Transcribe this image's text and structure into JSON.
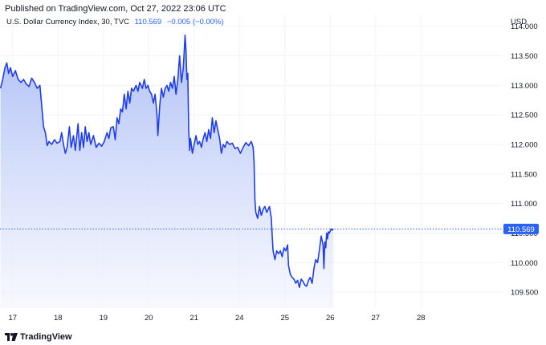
{
  "banner": "Published on TradingView.com, Oct 27, 2022 23:06 UTC",
  "legend": {
    "symbol": "U.S. Dollar Currency Index, 30, TVC",
    "last": "110.569",
    "change": "−0.005 (−0.00%)"
  },
  "currency": "USD",
  "footer": {
    "brand": "TradingView"
  },
  "colors": {
    "line": "#1f3ee8",
    "fill_top": "#a9bbf5",
    "fill_bottom": "#f4f6fe",
    "grid": "#f0f3fa",
    "price_tag": "#2962ff"
  },
  "chart_data": {
    "type": "area",
    "title": "U.S. Dollar Currency Index, 30, TVC",
    "ylabel": "USD",
    "xlabel": "",
    "x_ticks": [
      {
        "label": "17",
        "x": 0
      },
      {
        "label": "18",
        "x": 1
      },
      {
        "label": "19",
        "x": 2
      },
      {
        "label": "20",
        "x": 3
      },
      {
        "label": "21",
        "x": 4
      },
      {
        "label": "24",
        "x": 5
      },
      {
        "label": "25",
        "x": 6
      },
      {
        "label": "26",
        "x": 7
      },
      {
        "label": "27",
        "x": 8
      },
      {
        "label": "28",
        "x": 9
      }
    ],
    "y_ticks": [
      "109.500",
      "110.000",
      "110.500",
      "111.000",
      "111.500",
      "112.000",
      "112.500",
      "113.000",
      "113.500",
      "114.000"
    ],
    "y_tick_values": [
      109.5,
      110.0,
      110.5,
      111.0,
      111.5,
      112.0,
      112.5,
      113.0,
      113.5,
      114.0
    ],
    "xlim": [
      -0.28,
      10.8
    ],
    "ylim": [
      109.23,
      114.2
    ],
    "last_price": 110.569,
    "last_price_label": "110.569",
    "grid": true,
    "series": [
      {
        "values": [
          [
            -0.27,
            112.95
          ],
          [
            -0.22,
            113.1
          ],
          [
            -0.17,
            113.3
          ],
          [
            -0.13,
            113.38
          ],
          [
            -0.09,
            113.2
          ],
          [
            -0.05,
            113.3
          ],
          [
            0.0,
            113.15
          ],
          [
            0.06,
            113.25
          ],
          [
            0.12,
            113.1
          ],
          [
            0.18,
            113.05
          ],
          [
            0.24,
            113.1
          ],
          [
            0.3,
            113.02
          ],
          [
            0.36,
            112.98
          ],
          [
            0.42,
            113.12
          ],
          [
            0.48,
            113.05
          ],
          [
            0.54,
            112.95
          ],
          [
            0.6,
            113.0
          ],
          [
            0.64,
            112.65
          ],
          [
            0.68,
            112.3
          ],
          [
            0.72,
            112.2
          ],
          [
            0.76,
            111.98
          ],
          [
            0.8,
            112.05
          ],
          [
            0.86,
            112.0
          ],
          [
            0.92,
            112.08
          ],
          [
            0.98,
            112.02
          ],
          [
            1.04,
            112.05
          ],
          [
            1.08,
            112.2
          ],
          [
            1.12,
            112.0
          ],
          [
            1.16,
            111.85
          ],
          [
            1.2,
            111.95
          ],
          [
            1.25,
            112.3
          ],
          [
            1.29,
            111.95
          ],
          [
            1.34,
            112.15
          ],
          [
            1.38,
            111.9
          ],
          [
            1.44,
            112.35
          ],
          [
            1.48,
            111.9
          ],
          [
            1.52,
            112.2
          ],
          [
            1.56,
            111.95
          ],
          [
            1.6,
            112.3
          ],
          [
            1.64,
            112.05
          ],
          [
            1.68,
            112.2
          ],
          [
            1.72,
            112.0
          ],
          [
            1.78,
            112.15
          ],
          [
            1.84,
            111.95
          ],
          [
            1.9,
            112.02
          ],
          [
            1.96,
            111.97
          ],
          [
            2.02,
            112.05
          ],
          [
            2.08,
            112.2
          ],
          [
            2.12,
            112.1
          ],
          [
            2.16,
            112.28
          ],
          [
            2.22,
            112.3
          ],
          [
            2.26,
            112.08
          ],
          [
            2.3,
            112.45
          ],
          [
            2.34,
            112.35
          ],
          [
            2.38,
            112.6
          ],
          [
            2.42,
            112.55
          ],
          [
            2.46,
            112.85
          ],
          [
            2.5,
            112.6
          ],
          [
            2.54,
            112.9
          ],
          [
            2.58,
            112.7
          ],
          [
            2.62,
            112.95
          ],
          [
            2.66,
            112.9
          ],
          [
            2.72,
            113.0
          ],
          [
            2.76,
            112.9
          ],
          [
            2.8,
            113.05
          ],
          [
            2.86,
            112.95
          ],
          [
            2.9,
            113.1
          ],
          [
            2.94,
            112.95
          ],
          [
            2.98,
            113.0
          ],
          [
            3.02,
            112.9
          ],
          [
            3.06,
            112.85
          ],
          [
            3.1,
            112.7
          ],
          [
            3.14,
            112.85
          ],
          [
            3.18,
            112.5
          ],
          [
            3.2,
            112.15
          ],
          [
            3.24,
            112.65
          ],
          [
            3.28,
            112.95
          ],
          [
            3.32,
            112.8
          ],
          [
            3.36,
            112.95
          ],
          [
            3.4,
            113.0
          ],
          [
            3.44,
            112.9
          ],
          [
            3.48,
            113.05
          ],
          [
            3.52,
            112.95
          ],
          [
            3.56,
            113.15
          ],
          [
            3.6,
            112.85
          ],
          [
            3.64,
            113.1
          ],
          [
            3.68,
            113.5
          ],
          [
            3.72,
            113.05
          ],
          [
            3.76,
            113.3
          ],
          [
            3.8,
            113.85
          ],
          [
            3.82,
            113.6
          ],
          [
            3.84,
            113.1
          ],
          [
            3.86,
            113.2
          ],
          [
            3.88,
            112.25
          ],
          [
            3.9,
            111.9
          ],
          [
            3.92,
            112.1
          ],
          [
            3.96,
            111.85
          ],
          [
            4.0,
            112.0
          ],
          [
            4.04,
            112.15
          ],
          [
            4.08,
            112.0
          ],
          [
            4.12,
            112.05
          ],
          [
            4.16,
            111.95
          ],
          [
            4.2,
            112.1
          ],
          [
            4.24,
            112.2
          ],
          [
            4.28,
            112.05
          ],
          [
            4.32,
            112.25
          ],
          [
            4.36,
            112.1
          ],
          [
            4.4,
            112.45
          ],
          [
            4.44,
            112.2
          ],
          [
            4.48,
            112.4
          ],
          [
            4.52,
            112.25
          ],
          [
            4.56,
            112.1
          ],
          [
            4.6,
            111.85
          ],
          [
            4.64,
            112.0
          ],
          [
            4.68,
            111.95
          ],
          [
            4.72,
            112.05
          ],
          [
            4.78,
            112.0
          ],
          [
            4.84,
            112.02
          ],
          [
            4.9,
            111.93
          ],
          [
            4.96,
            111.95
          ],
          [
            5.02,
            111.85
          ],
          [
            5.08,
            111.95
          ],
          [
            5.14,
            112.03
          ],
          [
            5.2,
            111.98
          ],
          [
            5.26,
            112.05
          ],
          [
            5.3,
            111.95
          ],
          [
            5.32,
            111.7
          ],
          [
            5.34,
            111.05
          ],
          [
            5.36,
            110.85
          ],
          [
            5.4,
            110.75
          ],
          [
            5.44,
            110.95
          ],
          [
            5.48,
            110.8
          ],
          [
            5.52,
            110.9
          ],
          [
            5.56,
            110.95
          ],
          [
            5.6,
            110.85
          ],
          [
            5.66,
            110.95
          ],
          [
            5.7,
            110.75
          ],
          [
            5.72,
            110.45
          ],
          [
            5.74,
            110.2
          ],
          [
            5.78,
            110.05
          ],
          [
            5.82,
            110.2
          ],
          [
            5.86,
            110.15
          ],
          [
            5.9,
            110.2
          ],
          [
            5.94,
            110.1
          ],
          [
            5.98,
            110.25
          ],
          [
            6.02,
            110.2
          ],
          [
            6.06,
            110.3
          ],
          [
            6.08,
            109.95
          ],
          [
            6.12,
            109.8
          ],
          [
            6.16,
            109.75
          ],
          [
            6.2,
            109.72
          ],
          [
            6.24,
            109.65
          ],
          [
            6.28,
            109.7
          ],
          [
            6.32,
            109.58
          ],
          [
            6.36,
            109.72
          ],
          [
            6.4,
            109.68
          ],
          [
            6.44,
            109.62
          ],
          [
            6.48,
            109.6
          ],
          [
            6.52,
            109.7
          ],
          [
            6.56,
            109.75
          ],
          [
            6.6,
            109.65
          ],
          [
            6.64,
            109.9
          ],
          [
            6.68,
            110.05
          ],
          [
            6.72,
            110.0
          ],
          [
            6.76,
            110.2
          ],
          [
            6.8,
            110.45
          ],
          [
            6.84,
            110.3
          ],
          [
            6.86,
            109.9
          ],
          [
            6.88,
            110.35
          ],
          [
            6.9,
            110.25
          ],
          [
            6.92,
            110.5
          ],
          [
            6.94,
            110.4
          ],
          [
            6.96,
            110.52
          ],
          [
            6.98,
            110.5
          ],
          [
            7.02,
            110.57
          ],
          [
            7.04,
            110.55
          ],
          [
            7.07,
            110.569
          ]
        ]
      }
    ]
  }
}
